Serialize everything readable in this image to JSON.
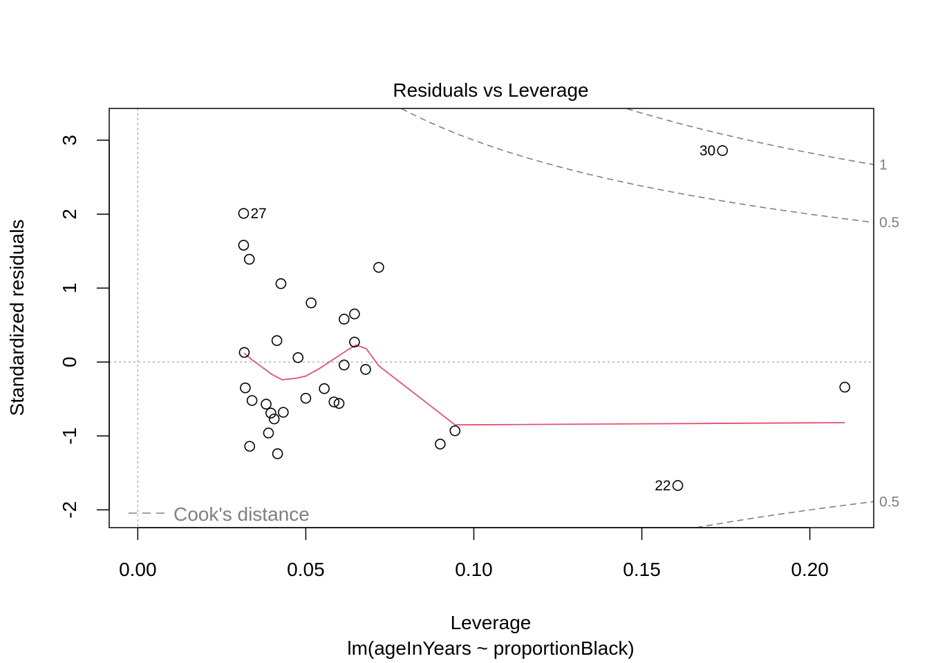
{
  "chart_data": {
    "type": "scatter",
    "title": "Residuals vs Leverage",
    "xlabel": "Leverage",
    "subtitle": "lm(ageInYears ~ proportionBlack)",
    "ylabel": "Standardized residuals",
    "xlim": [
      -0.0085,
      0.219
    ],
    "ylim": [
      -2.24,
      3.43
    ],
    "x_ticks": [
      0.0,
      0.05,
      0.1,
      0.15,
      0.2
    ],
    "x_tick_labels": [
      "0.00",
      "0.05",
      "0.10",
      "0.15",
      "0.20"
    ],
    "y_ticks": [
      -2,
      -1,
      0,
      1,
      2,
      3
    ],
    "y_tick_labels": [
      "-2",
      "-1",
      "0",
      "1",
      "2",
      "3"
    ],
    "colors": {
      "points": "#000000",
      "smoother": "#DF536B",
      "cook": "#808080",
      "reference": "#A9A9A9"
    },
    "points": [
      {
        "x": 0.0315,
        "y": 2.01,
        "label": "27"
      },
      {
        "x": 0.0315,
        "y": 1.58,
        "label": ""
      },
      {
        "x": 0.0332,
        "y": 1.39,
        "label": ""
      },
      {
        "x": 0.0426,
        "y": 1.06,
        "label": ""
      },
      {
        "x": 0.0516,
        "y": 0.8,
        "label": ""
      },
      {
        "x": 0.0717,
        "y": 1.28,
        "label": ""
      },
      {
        "x": 0.0614,
        "y": 0.58,
        "label": ""
      },
      {
        "x": 0.0645,
        "y": 0.65,
        "label": ""
      },
      {
        "x": 0.0414,
        "y": 0.29,
        "label": ""
      },
      {
        "x": 0.0645,
        "y": 0.27,
        "label": ""
      },
      {
        "x": 0.0317,
        "y": 0.13,
        "label": ""
      },
      {
        "x": 0.0477,
        "y": 0.06,
        "label": ""
      },
      {
        "x": 0.0614,
        "y": -0.04,
        "label": ""
      },
      {
        "x": 0.0678,
        "y": -0.1,
        "label": ""
      },
      {
        "x": 0.032,
        "y": -0.35,
        "label": ""
      },
      {
        "x": 0.034,
        "y": -0.52,
        "label": ""
      },
      {
        "x": 0.0382,
        "y": -0.57,
        "label": ""
      },
      {
        "x": 0.0396,
        "y": -0.69,
        "label": ""
      },
      {
        "x": 0.0406,
        "y": -0.77,
        "label": ""
      },
      {
        "x": 0.0433,
        "y": -0.68,
        "label": ""
      },
      {
        "x": 0.05,
        "y": -0.49,
        "label": ""
      },
      {
        "x": 0.0555,
        "y": -0.36,
        "label": ""
      },
      {
        "x": 0.0584,
        "y": -0.54,
        "label": ""
      },
      {
        "x": 0.0599,
        "y": -0.56,
        "label": ""
      },
      {
        "x": 0.0389,
        "y": -0.96,
        "label": ""
      },
      {
        "x": 0.0333,
        "y": -1.14,
        "label": ""
      },
      {
        "x": 0.0416,
        "y": -1.24,
        "label": ""
      },
      {
        "x": 0.09,
        "y": -1.11,
        "label": ""
      },
      {
        "x": 0.0944,
        "y": -0.93,
        "label": ""
      },
      {
        "x": 0.174,
        "y": 2.86,
        "label": "30"
      },
      {
        "x": 0.2104,
        "y": -0.34,
        "label": ""
      },
      {
        "x": 0.1607,
        "y": -1.67,
        "label": "22"
      }
    ],
    "smoother": {
      "x": [
        0.0317,
        0.034,
        0.037,
        0.04,
        0.043,
        0.047,
        0.05,
        0.054,
        0.058,
        0.061,
        0.063,
        0.065,
        0.068,
        0.0717,
        0.0944,
        0.2104
      ],
      "y": [
        0.12,
        0.03,
        -0.07,
        -0.17,
        -0.24,
        -0.22,
        -0.19,
        -0.09,
        0.03,
        0.12,
        0.18,
        0.23,
        0.18,
        -0.05,
        -0.85,
        -0.82
      ]
    },
    "cooks_distance": {
      "p": 2,
      "levels": [
        0.5,
        1
      ],
      "level_labels": [
        "0.5",
        "1"
      ],
      "legend": "Cook's distance"
    }
  }
}
